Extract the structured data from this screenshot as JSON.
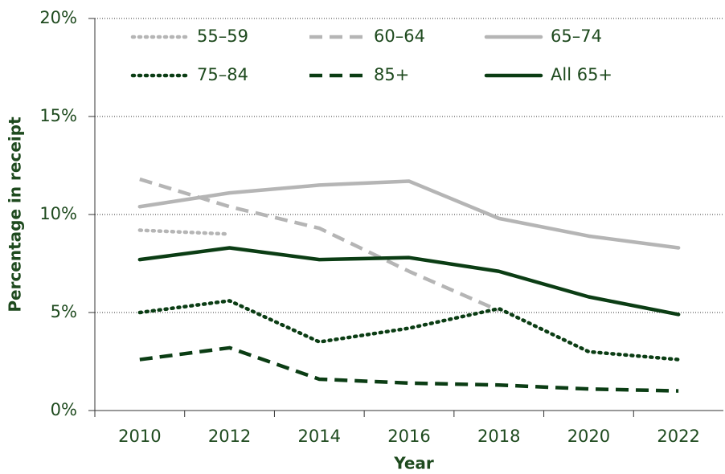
{
  "chart_data": {
    "type": "line",
    "y_label": "Percentage in receipt",
    "x_label": "Year",
    "categories": [
      "2010",
      "2012",
      "2014",
      "2016",
      "2018",
      "2020",
      "2022"
    ],
    "ylim": [
      0,
      20
    ],
    "yticks": [
      {
        "value": 0,
        "label": "0%"
      },
      {
        "value": 5,
        "label": "5%"
      },
      {
        "value": 10,
        "label": "10%"
      },
      {
        "value": 15,
        "label": "15%"
      },
      {
        "value": 20,
        "label": "20%"
      }
    ],
    "grid": true,
    "series": [
      {
        "name": "55–59",
        "color": "#b5b5b5",
        "dash": "dotted",
        "values": [
          9.2,
          9.0,
          null,
          null,
          null,
          null,
          null
        ]
      },
      {
        "name": "60–64",
        "color": "#b5b5b5",
        "dash": "dashed",
        "values": [
          11.8,
          10.4,
          9.3,
          7.1,
          5.1,
          null,
          null
        ]
      },
      {
        "name": "65–74",
        "color": "#b5b5b5",
        "dash": "solid",
        "values": [
          10.4,
          11.1,
          11.5,
          11.7,
          9.8,
          8.9,
          8.3
        ]
      },
      {
        "name": "75–84",
        "color": "#0b3d14",
        "dash": "dotted",
        "values": [
          5.0,
          5.6,
          3.5,
          4.2,
          5.2,
          3.0,
          2.6
        ]
      },
      {
        "name": "85+",
        "color": "#0b3d14",
        "dash": "dashed",
        "values": [
          2.6,
          3.2,
          1.6,
          1.4,
          1.3,
          1.1,
          1.0
        ]
      },
      {
        "name": "All 65+",
        "color": "#0b3d14",
        "dash": "solid",
        "values": [
          7.7,
          8.3,
          7.7,
          7.8,
          7.1,
          5.8,
          4.9
        ]
      }
    ]
  }
}
